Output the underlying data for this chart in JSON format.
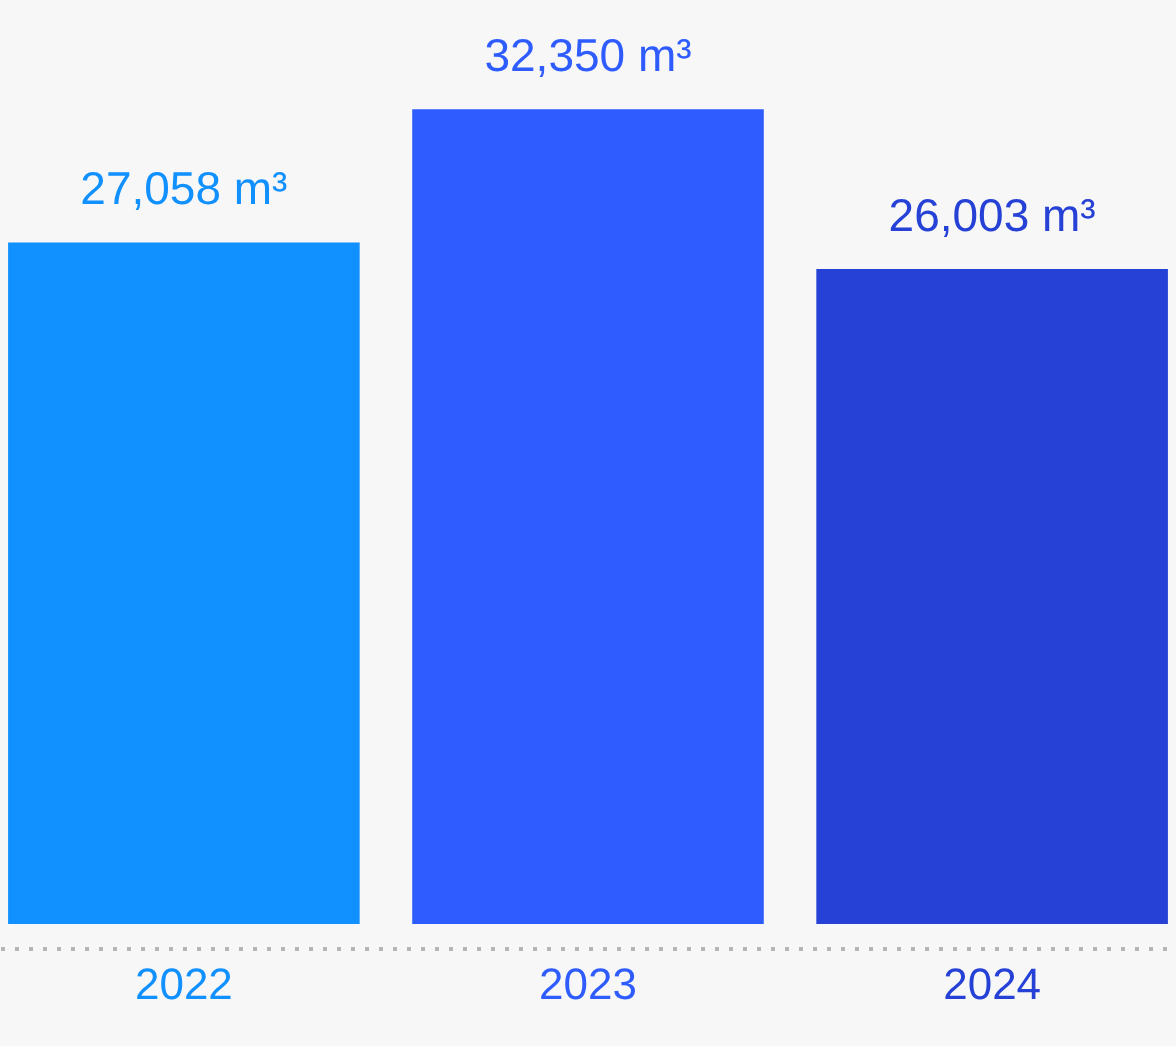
{
  "chart_data": {
    "type": "bar",
    "categories": [
      "2022",
      "2023",
      "2024"
    ],
    "values": [
      27058,
      32350,
      26003
    ],
    "colors": [
      "#1190ff",
      "#2e5cff",
      "#2541d6"
    ],
    "value_labels": [
      "27,058 m³",
      "32,350 m³",
      "26,003 m³"
    ],
    "grid": false
  }
}
